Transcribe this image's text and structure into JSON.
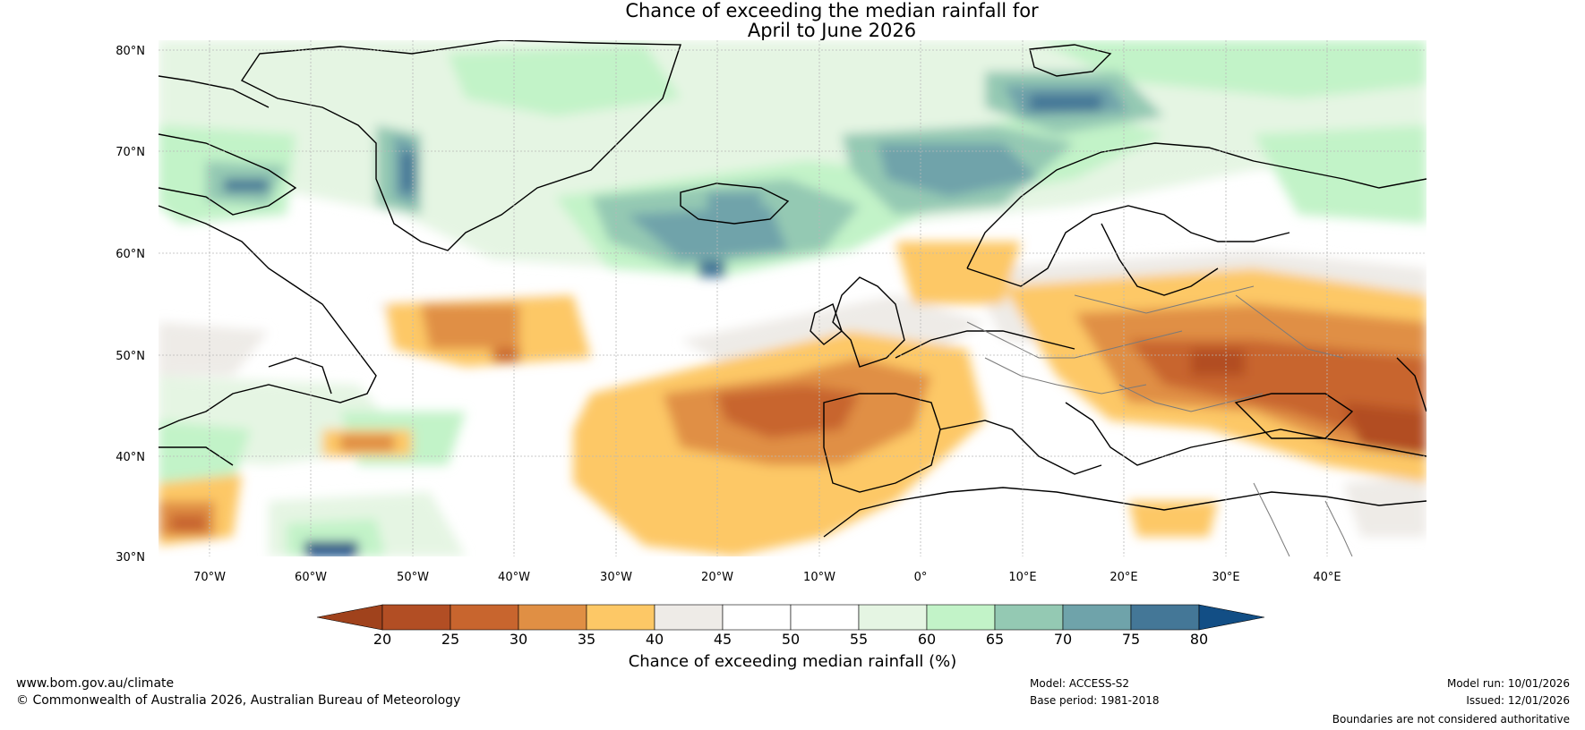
{
  "title": {
    "line1": "Chance of exceeding the median rainfall for",
    "line2": "April to June 2026"
  },
  "map": {
    "lat_labels": [
      "80°N",
      "70°N",
      "60°N",
      "50°N",
      "40°N",
      "30°N"
    ],
    "lon_labels": [
      "70°W",
      "60°W",
      "50°W",
      "40°W",
      "30°W",
      "20°W",
      "10°W",
      "0°",
      "10°E",
      "20°E",
      "30°E",
      "40°E"
    ],
    "region": "North Atlantic and Europe"
  },
  "colorbar": {
    "label": "Chance of exceeding median rainfall (%)",
    "ticks": [
      "20",
      "25",
      "30",
      "35",
      "40",
      "45",
      "50",
      "55",
      "60",
      "65",
      "70",
      "75",
      "80"
    ],
    "colors": [
      "#a0421c",
      "#b24e24",
      "#c8652e",
      "#e08f44",
      "#fdc866",
      "#eeebe7",
      "#ffffff",
      "#ffffff",
      "#e5f5e3",
      "#c2f3c8",
      "#94c9b3",
      "#6fa3aa",
      "#447797",
      "#124e85"
    ]
  },
  "footer": {
    "website": "www.bom.gov.au/climate",
    "copyright": "© Commonwealth of Australia 2026, Australian Bureau of Meteorology",
    "model": "Model: ACCESS-S2",
    "base_period": "Base period: 1981-2018",
    "model_run": "Model run: 10/01/2026",
    "issued": "Issued: 12/01/2026",
    "disclaimer": "Boundaries are not considered authoritative"
  }
}
